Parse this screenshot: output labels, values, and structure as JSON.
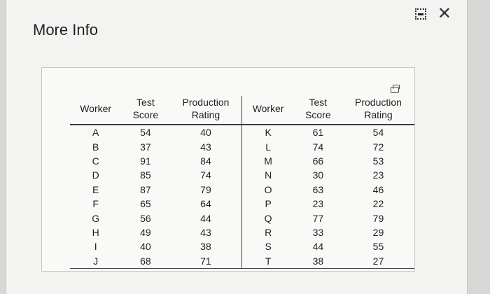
{
  "window": {
    "title": "More Info",
    "minimize_icon": "minimize-icon",
    "close_icon": "close-icon",
    "close_glyph": "✕"
  },
  "table": {
    "copy_icon": "copy-icon",
    "headers_left": [
      "Worker",
      "Test Score",
      "Production Rating"
    ],
    "headers_right": [
      "Worker",
      "Test Score",
      "Production Rating"
    ],
    "rows": [
      {
        "w1": "A",
        "ts1": "54",
        "pr1": "40",
        "w2": "K",
        "ts2": "61",
        "pr2": "54"
      },
      {
        "w1": "B",
        "ts1": "37",
        "pr1": "43",
        "w2": "L",
        "ts2": "74",
        "pr2": "72"
      },
      {
        "w1": "C",
        "ts1": "91",
        "pr1": "84",
        "w2": "M",
        "ts2": "66",
        "pr2": "53"
      },
      {
        "w1": "D",
        "ts1": "85",
        "pr1": "74",
        "w2": "N",
        "ts2": "30",
        "pr2": "23"
      },
      {
        "w1": "E",
        "ts1": "87",
        "pr1": "79",
        "w2": "O",
        "ts2": "63",
        "pr2": "46"
      },
      {
        "w1": "F",
        "ts1": "65",
        "pr1": "64",
        "w2": "P",
        "ts2": "23",
        "pr2": "22"
      },
      {
        "w1": "G",
        "ts1": "56",
        "pr1": "44",
        "w2": "Q",
        "ts2": "77",
        "pr2": "79"
      },
      {
        "w1": "H",
        "ts1": "49",
        "pr1": "43",
        "w2": "R",
        "ts2": "33",
        "pr2": "29"
      },
      {
        "w1": "I",
        "ts1": "40",
        "pr1": "38",
        "w2": "S",
        "ts2": "44",
        "pr2": "55"
      },
      {
        "w1": "J",
        "ts1": "68",
        "pr1": "71",
        "w2": "T",
        "ts2": "38",
        "pr2": "27"
      }
    ]
  }
}
